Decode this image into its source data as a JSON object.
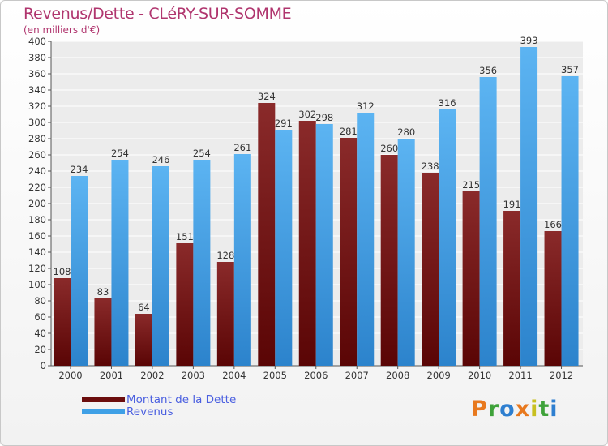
{
  "header": {
    "title": "Revenus/Dette - CLéRY-SUR-SOMME",
    "subtitle": "(en milliers d'€)"
  },
  "legend": {
    "items": [
      {
        "label": "Montant de la Dette",
        "color": "#6b0d0d"
      },
      {
        "label": "Revenus",
        "color": "#3fa0e6"
      }
    ]
  },
  "branding": {
    "letters": [
      "P",
      "r",
      "o",
      "x",
      "i",
      "t",
      "i"
    ],
    "colors": [
      "#e8791e",
      "#3fa23a",
      "#2e7fd0",
      "#e8791e",
      "#c8c020",
      "#3fa23a",
      "#2e7fd0"
    ]
  },
  "chart_data": {
    "type": "bar",
    "title": "Revenus/Dette - CLéRY-SUR-SOMME",
    "ylabel": "(en milliers d'€)",
    "xlabel": "",
    "ylim": [
      0,
      400
    ],
    "ytick_step": 20,
    "grid": true,
    "legend_position": "bottom-left",
    "categories": [
      "2000",
      "2001",
      "2002",
      "2003",
      "2004",
      "2005",
      "2006",
      "2007",
      "2008",
      "2009",
      "2010",
      "2011",
      "2012"
    ],
    "series": [
      {
        "name": "Montant de la Dette",
        "color": "#6b0d0d",
        "values": [
          108,
          83,
          64,
          151,
          128,
          324,
          302,
          281,
          260,
          238,
          215,
          191,
          166
        ]
      },
      {
        "name": "Revenus",
        "color": "#3fa0e6",
        "values": [
          234,
          254,
          246,
          254,
          261,
          291,
          298,
          312,
          280,
          316,
          356,
          393,
          357
        ]
      }
    ]
  }
}
